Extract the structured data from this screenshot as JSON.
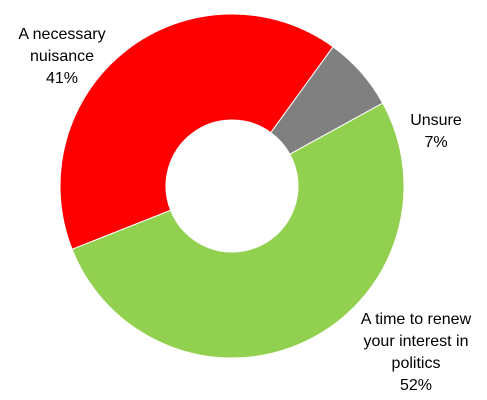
{
  "chart_data": {
    "type": "pie",
    "variant": "donut",
    "title": "",
    "categories": [
      "A necessary nuisance",
      "Unsure",
      "A time to renew your interest in politics"
    ],
    "values": [
      41,
      7,
      52
    ],
    "unit": "%",
    "colors": [
      "#ff0000",
      "#808080",
      "#92d050"
    ],
    "legend": "none",
    "labels": [
      {
        "lines": [
          "A necessary",
          "nuisance",
          "41%"
        ]
      },
      {
        "lines": [
          "Unsure",
          "7%"
        ]
      },
      {
        "lines": [
          "A time to renew",
          "your interest in",
          "politics",
          "52%"
        ]
      }
    ]
  }
}
